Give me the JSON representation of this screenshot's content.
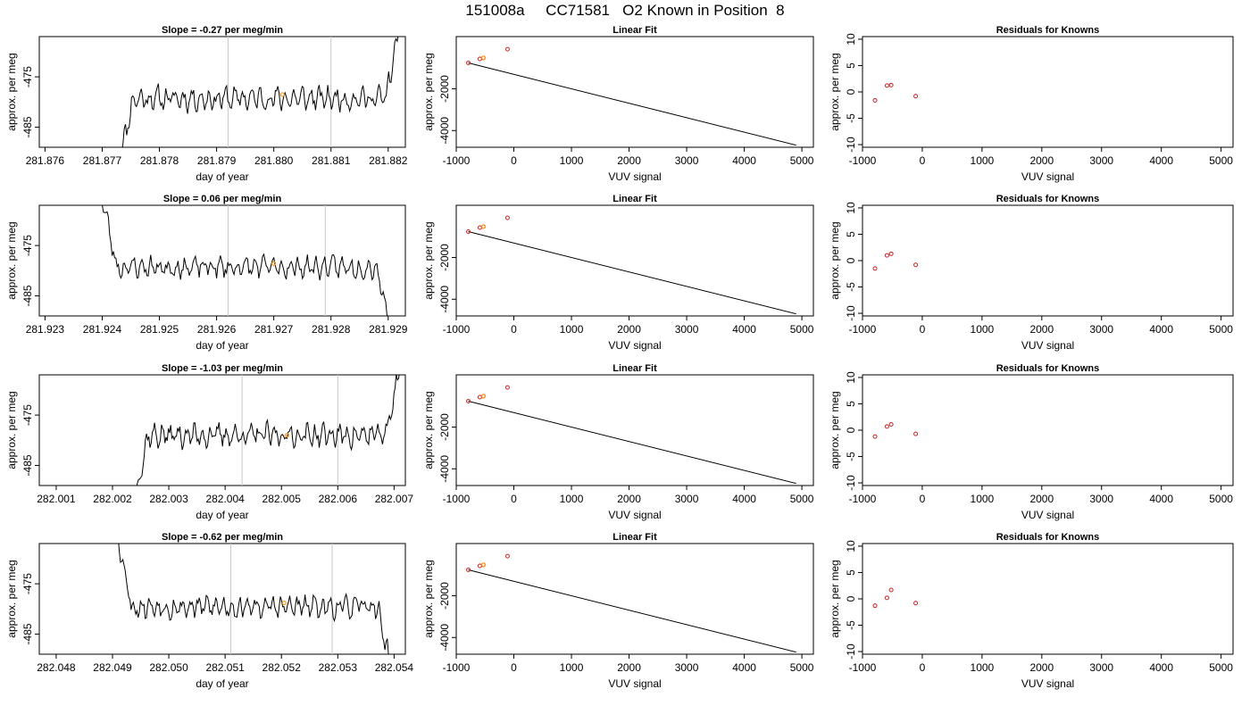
{
  "header": {
    "title": "151008a     CC71581   O2 Known in Position  8"
  },
  "chart_data": [
    {
      "type": "line",
      "panel": "time-series-1",
      "title": "Slope =  -0.27  per meg/min",
      "xlabel": "day of year",
      "ylabel": "approx. per meg",
      "xlim": [
        281.8759,
        281.8823
      ],
      "ylim": [
        -489,
        -467
      ],
      "xticks": [
        "281.876",
        "281.877",
        "281.878",
        "281.879",
        "281.880",
        "281.881",
        "281.882"
      ],
      "yticks": [
        "-485",
        "-475"
      ],
      "vlines": [
        281.8792,
        281.881
      ],
      "series_profile": {
        "start": 281.8773,
        "end": 281.8822,
        "baseline": -479.3,
        "noise": 2.0,
        "seed": 11,
        "ramp_in": true,
        "ramp_out_up": true
      },
      "highlight_point": {
        "x": 281.88015,
        "y": -478.5
      }
    },
    {
      "type": "scatter",
      "panel": "linear-fit-1",
      "title": "Linear Fit",
      "xlabel": "VUV signal",
      "ylabel": "approx. per meg",
      "xlim": [
        -1000,
        5200
      ],
      "ylim": [
        -4800,
        500
      ],
      "xticks": [
        "-1000",
        "0",
        "1000",
        "2000",
        "3000",
        "4000",
        "5000"
      ],
      "yticks": [
        "-4000",
        "-2000"
      ],
      "points": [
        {
          "x": -790,
          "y": -760
        },
        {
          "x": -590,
          "y": -570
        },
        {
          "x": -530,
          "y": -525
        },
        {
          "x": -110,
          "y": -105
        }
      ],
      "highlight_point": {
        "x": -525,
        "y": -520
      },
      "fit_line": [
        [
          -790,
          -760
        ],
        [
          4900,
          -4700
        ]
      ]
    },
    {
      "type": "scatter",
      "panel": "residuals-1",
      "title": "Residuals for Knowns",
      "xlabel": "VUV signal",
      "ylabel": "approx. per meg",
      "xlim": [
        -1000,
        5200
      ],
      "ylim": [
        -10.5,
        10.5
      ],
      "xticks": [
        "-1000",
        "0",
        "1000",
        "2000",
        "3000",
        "4000",
        "5000"
      ],
      "yticks": [
        "-10",
        "-5",
        "0",
        "5",
        "10"
      ],
      "points": [
        {
          "x": -790,
          "y": -1.6
        },
        {
          "x": -590,
          "y": 1.2
        },
        {
          "x": -520,
          "y": 1.3
        },
        {
          "x": -110,
          "y": -0.8
        }
      ]
    },
    {
      "type": "line",
      "panel": "time-series-2",
      "title": "Slope =  0.06  per meg/min",
      "xlabel": "day of year",
      "ylabel": "approx. per meg",
      "xlim": [
        281.9229,
        281.9293
      ],
      "ylim": [
        -489,
        -467
      ],
      "xticks": [
        "281.923",
        "281.924",
        "281.925",
        "281.926",
        "281.927",
        "281.928",
        "281.929"
      ],
      "yticks": [
        "-485",
        "-475"
      ],
      "vlines": [
        281.9262,
        281.9279
      ],
      "series_profile": {
        "start": 281.924,
        "end": 281.929,
        "baseline": -479.3,
        "noise": 1.8,
        "seed": 23,
        "ramp_in_down": true,
        "ramp_out_down": true
      },
      "highlight_point": {
        "x": 281.927,
        "y": -478.6
      }
    },
    {
      "type": "scatter",
      "panel": "linear-fit-2",
      "title": "Linear Fit",
      "xlabel": "VUV signal",
      "ylabel": "approx. per meg",
      "xlim": [
        -1000,
        5200
      ],
      "ylim": [
        -4800,
        500
      ],
      "xticks": [
        "-1000",
        "0",
        "1000",
        "2000",
        "3000",
        "4000",
        "5000"
      ],
      "yticks": [
        "-4000",
        "-2000"
      ],
      "points": [
        {
          "x": -790,
          "y": -760
        },
        {
          "x": -590,
          "y": -570
        },
        {
          "x": -530,
          "y": -525
        },
        {
          "x": -110,
          "y": -105
        }
      ],
      "highlight_point": {
        "x": -525,
        "y": -520
      },
      "fit_line": [
        [
          -790,
          -760
        ],
        [
          4900,
          -4700
        ]
      ]
    },
    {
      "type": "scatter",
      "panel": "residuals-2",
      "title": "Residuals for Knowns",
      "xlabel": "VUV signal",
      "ylabel": "approx. per meg",
      "xlim": [
        -1000,
        5200
      ],
      "ylim": [
        -10.5,
        10.5
      ],
      "xticks": [
        "-1000",
        "0",
        "1000",
        "2000",
        "3000",
        "4000",
        "5000"
      ],
      "yticks": [
        "-10",
        "-5",
        "0",
        "5",
        "10"
      ],
      "points": [
        {
          "x": -790,
          "y": -1.5
        },
        {
          "x": -590,
          "y": 1.0
        },
        {
          "x": -520,
          "y": 1.3
        },
        {
          "x": -110,
          "y": -0.8
        }
      ]
    },
    {
      "type": "line",
      "panel": "time-series-3",
      "title": "Slope =  -1.03  per meg/min",
      "xlabel": "day of year",
      "ylabel": "approx. per meg",
      "xlim": [
        282.0007,
        282.0072
      ],
      "ylim": [
        -489,
        -467
      ],
      "xticks": [
        "282.001",
        "282.002",
        "282.003",
        "282.004",
        "282.005",
        "282.006",
        "282.007"
      ],
      "yticks": [
        "-485",
        "-475"
      ],
      "vlines": [
        282.0043,
        282.006
      ],
      "series_profile": {
        "start": 282.0024,
        "end": 282.0071,
        "baseline": -479.0,
        "noise": 2.0,
        "seed": 37,
        "ramp_in": true,
        "ramp_out_up": true
      },
      "highlight_point": {
        "x": 282.0051,
        "y": -479.0
      }
    },
    {
      "type": "scatter",
      "panel": "linear-fit-3",
      "title": "Linear Fit",
      "xlabel": "VUV signal",
      "ylabel": "approx. per meg",
      "xlim": [
        -1000,
        5200
      ],
      "ylim": [
        -4800,
        500
      ],
      "xticks": [
        "-1000",
        "0",
        "1000",
        "2000",
        "3000",
        "4000",
        "5000"
      ],
      "yticks": [
        "-4000",
        "-2000"
      ],
      "points": [
        {
          "x": -790,
          "y": -760
        },
        {
          "x": -590,
          "y": -570
        },
        {
          "x": -530,
          "y": -525
        },
        {
          "x": -110,
          "y": -105
        }
      ],
      "highlight_point": {
        "x": -525,
        "y": -520
      },
      "fit_line": [
        [
          -790,
          -760
        ],
        [
          4900,
          -4700
        ]
      ]
    },
    {
      "type": "scatter",
      "panel": "residuals-3",
      "title": "Residuals for Knowns",
      "xlabel": "VUV signal",
      "ylabel": "approx. per meg",
      "xlim": [
        -1000,
        5200
      ],
      "ylim": [
        -10.5,
        10.5
      ],
      "xticks": [
        "-1000",
        "0",
        "1000",
        "2000",
        "3000",
        "4000",
        "5000"
      ],
      "yticks": [
        "-10",
        "-5",
        "0",
        "5",
        "10"
      ],
      "points": [
        {
          "x": -790,
          "y": -1.2
        },
        {
          "x": -590,
          "y": 0.7
        },
        {
          "x": -520,
          "y": 1.1
        },
        {
          "x": -110,
          "y": -0.7
        }
      ]
    },
    {
      "type": "line",
      "panel": "time-series-4",
      "title": "Slope =  -0.62  per meg/min",
      "xlabel": "day of year",
      "ylabel": "approx. per meg",
      "xlim": [
        282.0477,
        282.0542
      ],
      "ylim": [
        -489,
        -467
      ],
      "xticks": [
        "282.048",
        "282.049",
        "282.050",
        "282.051",
        "282.052",
        "282.053",
        "282.054"
      ],
      "yticks": [
        "-485",
        "-475"
      ],
      "vlines": [
        282.0511,
        282.0529
      ],
      "series_profile": {
        "start": 282.0491,
        "end": 282.0539,
        "baseline": -479.6,
        "noise": 1.9,
        "seed": 53,
        "ramp_in_down": true,
        "ramp_out_down": true
      },
      "highlight_point": {
        "x": 282.05205,
        "y": -478.8
      }
    },
    {
      "type": "scatter",
      "panel": "linear-fit-4",
      "title": "Linear Fit",
      "xlabel": "VUV signal",
      "ylabel": "approx. per meg",
      "xlim": [
        -1000,
        5200
      ],
      "ylim": [
        -4800,
        500
      ],
      "xticks": [
        "-1000",
        "0",
        "1000",
        "2000",
        "3000",
        "4000",
        "5000"
      ],
      "yticks": [
        "-4000",
        "-2000"
      ],
      "points": [
        {
          "x": -790,
          "y": -760
        },
        {
          "x": -590,
          "y": -570
        },
        {
          "x": -530,
          "y": -525
        },
        {
          "x": -110,
          "y": -105
        }
      ],
      "highlight_point": {
        "x": -525,
        "y": -520
      },
      "fit_line": [
        [
          -790,
          -760
        ],
        [
          4900,
          -4700
        ]
      ]
    },
    {
      "type": "scatter",
      "panel": "residuals-4",
      "title": "Residuals for Knowns",
      "xlabel": "VUV signal",
      "ylabel": "approx. per meg",
      "xlim": [
        -1000,
        5200
      ],
      "ylim": [
        -10.5,
        10.5
      ],
      "xticks": [
        "-1000",
        "0",
        "1000",
        "2000",
        "3000",
        "4000",
        "5000"
      ],
      "yticks": [
        "-10",
        "-5",
        "0",
        "5",
        "10"
      ],
      "points": [
        {
          "x": -790,
          "y": -1.3
        },
        {
          "x": -590,
          "y": 0.2
        },
        {
          "x": -520,
          "y": 1.7
        },
        {
          "x": -110,
          "y": -0.8
        }
      ]
    }
  ],
  "colors": {
    "line": "#000000",
    "point": "#cc2222",
    "highlight": "#ff9a1f",
    "vline": "#c8c8c8"
  }
}
